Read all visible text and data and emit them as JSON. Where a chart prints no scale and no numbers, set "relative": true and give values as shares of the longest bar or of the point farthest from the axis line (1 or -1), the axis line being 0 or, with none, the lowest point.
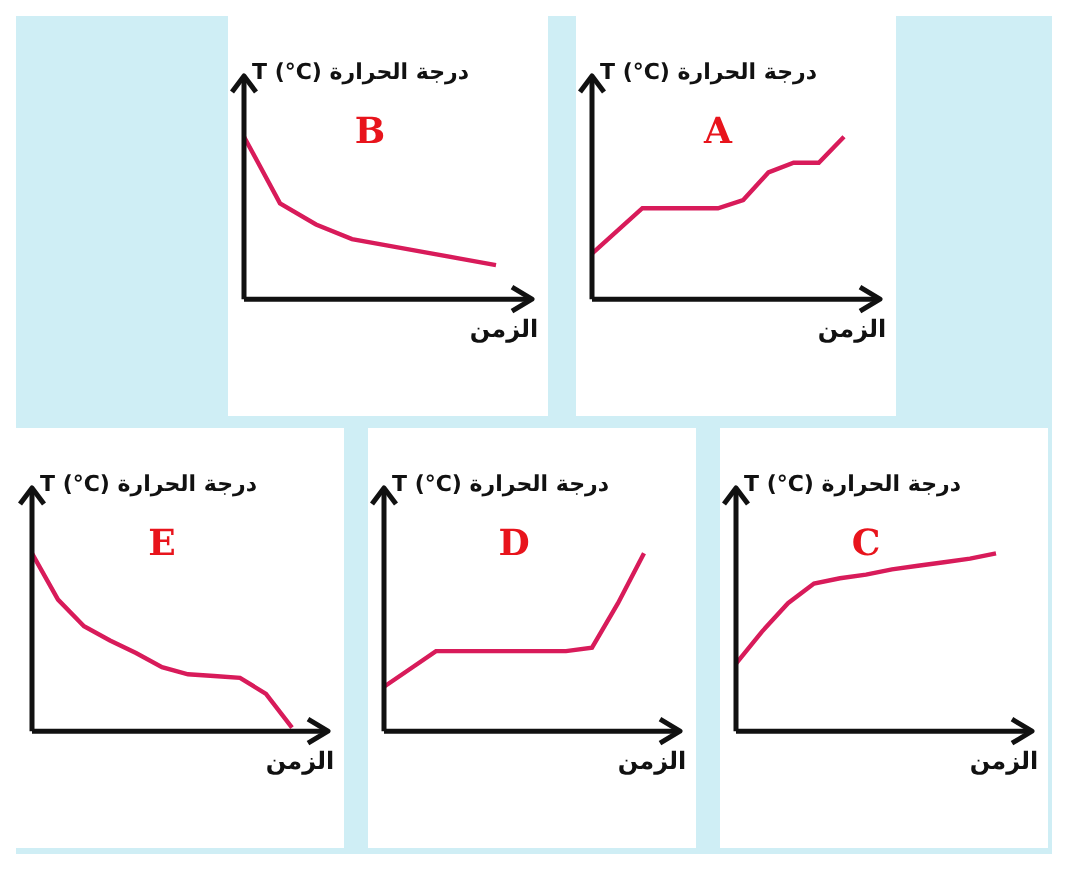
{
  "chart_data": [
    {
      "type": "line",
      "title": "B",
      "ylabel": "T (°C) درجة الحرارة",
      "xlabel": "الزمن",
      "relative": true,
      "categories": [
        null,
        null,
        null,
        null,
        null,
        null,
        null,
        null
      ],
      "series": [
        {
          "color": "#d81b5a",
          "values": [
            1,
            0.59,
            0.46,
            0.37,
            0.33,
            0.29,
            0.25,
            0.21
          ]
        }
      ],
      "grid": false,
      "legend": false,
      "marker": "none"
    },
    {
      "type": "line",
      "title": "A",
      "ylabel": "T (°C) درجة الحرارة",
      "xlabel": "الزمن",
      "relative": true,
      "categories": [
        null,
        null,
        null,
        null,
        null,
        null,
        null,
        null,
        null,
        null,
        null
      ],
      "series": [
        {
          "color": "#d81b5a",
          "values": [
            0.28,
            0.42,
            0.56,
            0.56,
            0.56,
            0.56,
            0.61,
            0.78,
            0.84,
            0.84,
            1
          ]
        }
      ],
      "grid": false,
      "legend": false,
      "marker": "none"
    },
    {
      "type": "line",
      "title": "E",
      "ylabel": "T (°C) درجة الحرارة",
      "xlabel": "الزمن",
      "relative": true,
      "categories": [
        null,
        null,
        null,
        null,
        null,
        null,
        null,
        null,
        null,
        null,
        null
      ],
      "series": [
        {
          "color": "#d81b5a",
          "values": [
            1,
            0.74,
            0.59,
            0.51,
            0.44,
            0.36,
            0.32,
            0.31,
            0.3,
            0.21,
            0.02
          ]
        }
      ],
      "grid": false,
      "legend": false,
      "marker": "none"
    },
    {
      "type": "line",
      "title": "D",
      "ylabel": "T (°C) درجة الحرارة",
      "xlabel": "الزمن",
      "relative": true,
      "categories": [
        null,
        null,
        null,
        null,
        null,
        null,
        null,
        null,
        null,
        null,
        null
      ],
      "series": [
        {
          "color": "#d81b5a",
          "values": [
            0.25,
            0.35,
            0.45,
            0.45,
            0.45,
            0.45,
            0.45,
            0.45,
            0.47,
            0.72,
            1
          ]
        }
      ],
      "grid": false,
      "legend": false,
      "marker": "none"
    },
    {
      "type": "line",
      "title": "C",
      "ylabel": "T (°C) درجة الحرارة",
      "xlabel": "الزمن",
      "relative": true,
      "categories": [
        null,
        null,
        null,
        null,
        null,
        null,
        null,
        null,
        null,
        null,
        null
      ],
      "series": [
        {
          "color": "#d81b5a",
          "values": [
            0.38,
            0.56,
            0.72,
            0.83,
            0.86,
            0.88,
            0.91,
            0.93,
            0.95,
            0.97,
            1
          ]
        }
      ],
      "grid": false,
      "legend": false,
      "marker": "none"
    }
  ]
}
